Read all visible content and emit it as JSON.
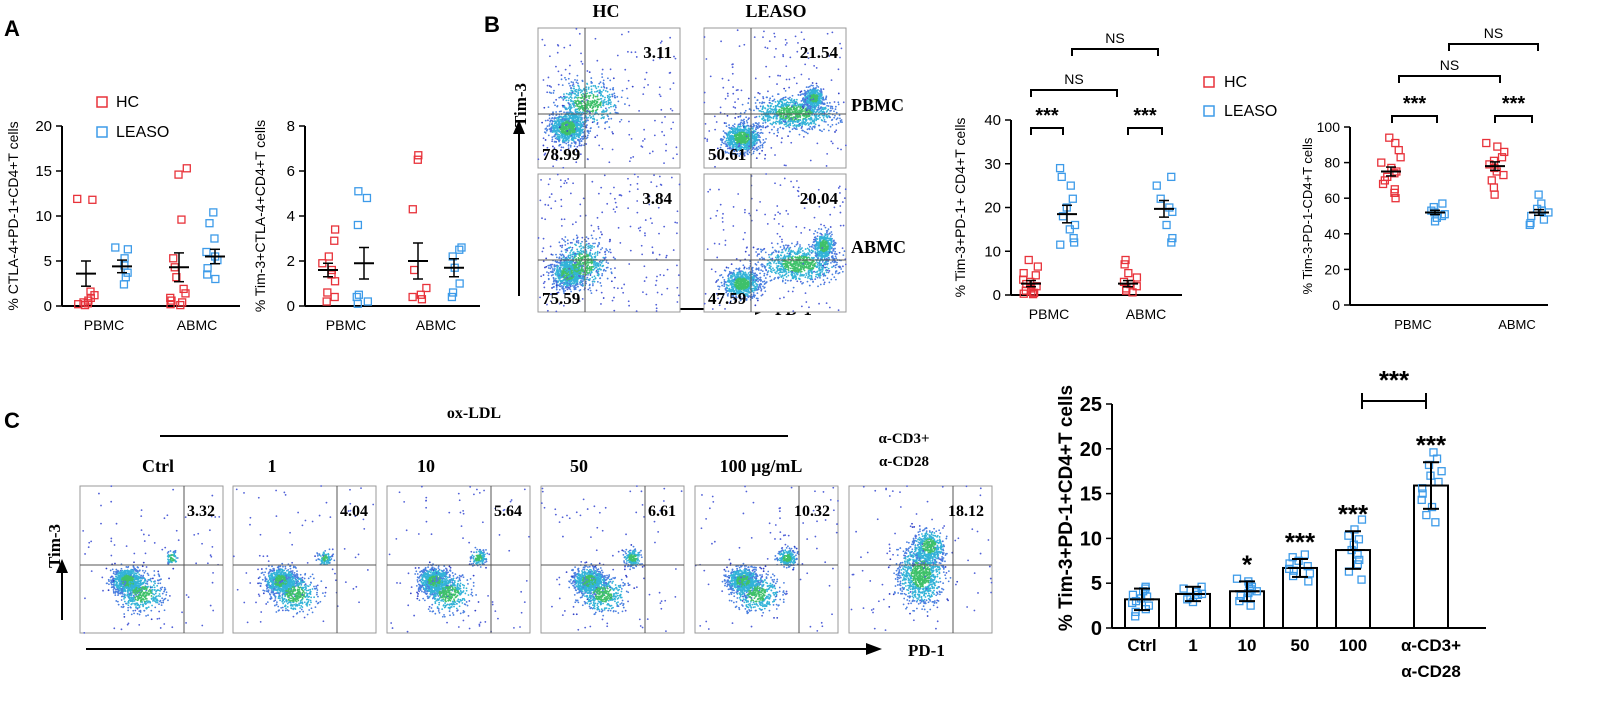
{
  "panel_labels": {
    "a": "A",
    "b": "B",
    "c": "C"
  },
  "colors": {
    "hc": "#e8323a",
    "leaso": "#3d9be9",
    "axis": "#000000"
  },
  "legend": {
    "hc": "HC",
    "leaso": "LEASO"
  },
  "flow_common": {
    "tim3": "Tim-3",
    "pd1": "PD-1"
  },
  "flow_b": {
    "col_hc": "HC",
    "col_leaso": "LEASO",
    "row_pbmc": "PBMC",
    "row_abmc": "ABMC",
    "q": {
      "hc_pbmc_ur": "3.11",
      "hc_pbmc_ll": "78.99",
      "leaso_pbmc_ur": "21.54",
      "leaso_pbmc_ll": "50.61",
      "hc_abmc_ur": "3.84",
      "hc_abmc_ll": "75.59",
      "leaso_abmc_ur": "20.04",
      "leaso_abmc_ll": "47.59"
    }
  },
  "flow_c": {
    "ox_label": "ox-LDL",
    "cond": {
      "ctrl": "Ctrl",
      "d1": "1",
      "d10": "10",
      "d50": "50",
      "d100": "100 μg/mL",
      "cd3a": "α-CD3+",
      "cd3b": "α-CD28"
    },
    "values": {
      "ctrl": "3.32",
      "d1": "4.04",
      "d10": "5.64",
      "d50": "6.61",
      "d100": "10.32",
      "cd3": "18.12"
    }
  },
  "chart_data": [
    {
      "id": "A1",
      "type": "scatter",
      "ylabel": "% CTLA-4+PD-1+CD4+T cells",
      "ylim": [
        0,
        20
      ],
      "yticks": [
        "0",
        "5",
        "10",
        "15",
        "20"
      ],
      "categories": [
        "PBMC",
        "ABMC"
      ],
      "series": [
        {
          "name": "HC",
          "groups": [
            [
              11.8,
              11.9,
              1.6,
              1.2,
              0.9,
              0.6,
              0.4,
              0.3,
              0.2,
              0.1
            ],
            [
              15.3,
              14.6,
              9.6,
              5.3,
              4.3,
              3.2,
              1.9,
              1.4,
              0.9,
              0.6,
              0.4,
              0.2,
              0.1
            ]
          ],
          "mean": [
            3.6,
            4.3
          ],
          "sem": [
            1.4,
            1.6
          ]
        },
        {
          "name": "LEASO",
          "groups": [
            [
              6.5,
              6.3,
              5.3,
              4.5,
              3.7,
              3.2,
              2.4
            ],
            [
              10.4,
              9.2,
              7.5,
              6.0,
              5.5,
              5.1,
              4.2,
              3.5,
              3.0
            ]
          ],
          "mean": [
            4.4,
            5.5
          ],
          "sem": [
            0.7,
            0.8
          ]
        }
      ]
    },
    {
      "id": "A2",
      "type": "scatter",
      "ylabel": "% Tim-3+CTLA-4+CD4+T cells",
      "ylim": [
        0,
        8
      ],
      "yticks": [
        "0",
        "2",
        "4",
        "6",
        "8"
      ],
      "categories": [
        "PBMC",
        "ABMC"
      ],
      "series": [
        {
          "name": "HC",
          "groups": [
            [
              3.4,
              2.9,
              2.2,
              1.9,
              1.6,
              1.4,
              1.1,
              0.6,
              0.4,
              0.2
            ],
            [
              6.7,
              6.5,
              4.3,
              1.6,
              0.8,
              0.5,
              0.4,
              0.3
            ]
          ],
          "mean": [
            1.6,
            2.0
          ],
          "sem": [
            0.3,
            0.8
          ]
        },
        {
          "name": "LEASO",
          "groups": [
            [
              5.1,
              4.8,
              3.6,
              0.5,
              0.4,
              0.2,
              0.1
            ],
            [
              2.6,
              2.5,
              2.2,
              1.7,
              1.0,
              0.6,
              0.4
            ]
          ],
          "mean": [
            1.9,
            1.7
          ],
          "sem": [
            0.7,
            0.4
          ]
        }
      ]
    },
    {
      "id": "B1",
      "type": "scatter",
      "ylabel": "% Tim-3+PD-1+ CD4+T cells",
      "ylim": [
        0,
        40
      ],
      "yticks": [
        "0",
        "10",
        "20",
        "30",
        "40"
      ],
      "categories": [
        "PBMC",
        "ABMC"
      ],
      "series": [
        {
          "name": "HC",
          "groups": [
            [
              8,
              6.5,
              5,
              4.5,
              3.5,
              3,
              2.5,
              2,
              1.5,
              1,
              0.8,
              0.5,
              0.3,
              0.2
            ],
            [
              8,
              7,
              5,
              4,
              3,
              2.5,
              2,
              1.5,
              1,
              0.6
            ]
          ],
          "mean": [
            2.6,
            2.6
          ],
          "sem": [
            0.7,
            0.7
          ]
        },
        {
          "name": "LEASO",
          "groups": [
            [
              29,
              27,
              25,
              22,
              20,
              18,
              16,
              15,
              13,
              12,
              11.5
            ],
            [
              27,
              25,
              22,
              20,
              19,
              16,
              13,
              12
            ]
          ],
          "mean": [
            18.5,
            19.7
          ],
          "sem": [
            2.0,
            1.9
          ]
        }
      ],
      "significance": [
        {
          "label": "***",
          "between": "HC-LEASO PBMC"
        },
        {
          "label": "***",
          "between": "HC-LEASO ABMC"
        },
        {
          "label": "NS",
          "between": "HC PBMC-ABMC"
        },
        {
          "label": "NS",
          "between": "LEASO PBMC-ABMC"
        }
      ]
    },
    {
      "id": "B2",
      "type": "scatter",
      "ylabel": "% Tim-3-PD-1-CD4+T cells",
      "ylim": [
        0,
        100
      ],
      "yticks": [
        "0",
        "20",
        "40",
        "60",
        "80",
        "100"
      ],
      "categories": [
        "PBMC",
        "ABMC"
      ],
      "series": [
        {
          "name": "HC",
          "groups": [
            [
              94,
              91,
              87,
              83,
              80,
              77,
              75,
              74,
              72,
              70,
              68,
              65,
              63,
              60
            ],
            [
              91,
              89,
              86,
              83,
              81,
              79,
              77,
              75,
              73,
              70,
              66,
              62
            ]
          ],
          "mean": [
            75,
            78
          ],
          "sem": [
            2.5,
            2.4
          ]
        },
        {
          "name": "LEASO",
          "groups": [
            [
              57,
              55,
              53,
              52,
              51,
              50,
              49,
              47
            ],
            [
              62,
              57,
              54,
              53,
              52,
              50,
              48,
              46,
              45
            ]
          ],
          "mean": [
            52,
            52
          ],
          "sem": [
            1.2,
            1.6
          ]
        }
      ],
      "significance": [
        {
          "label": "***",
          "between": "HC-LEASO PBMC"
        },
        {
          "label": "***",
          "between": "HC-LEASO ABMC"
        },
        {
          "label": "NS",
          "between": "HC PBMC-ABMC"
        },
        {
          "label": "NS",
          "between": "LEASO PBMC-ABMC"
        }
      ]
    },
    {
      "id": "C",
      "type": "bar",
      "ylabel": "% Tim-3+PD-1+CD4+T cells",
      "ylim": [
        0,
        25
      ],
      "yticks": [
        "0",
        "5",
        "10",
        "15",
        "20",
        "25"
      ],
      "categories": [
        "Ctrl",
        "1",
        "10",
        "50",
        "100",
        "α-CD3+ α-CD28"
      ],
      "values": [
        3.2,
        3.8,
        4.1,
        6.7,
        8.7,
        15.9
      ],
      "sd": [
        1.2,
        0.8,
        1.1,
        1.0,
        2.1,
        2.6
      ],
      "points": [
        [
          1.3,
          1.8,
          2.1,
          2.5,
          2.8,
          3.0,
          3.3,
          3.5,
          3.7,
          4.1,
          4.4,
          4.6
        ],
        [
          2.9,
          3.2,
          3.5,
          3.7,
          3.8,
          4.0,
          4.2,
          4.4,
          4.6
        ],
        [
          2.5,
          3.0,
          3.3,
          3.6,
          3.9,
          4.1,
          4.3,
          4.6,
          4.9,
          5.2,
          5.5
        ],
        [
          5.2,
          5.8,
          6.1,
          6.4,
          6.6,
          6.9,
          7.2,
          7.5,
          7.9,
          8.2
        ],
        [
          5.4,
          6.3,
          7.1,
          7.6,
          8.2,
          8.7,
          9.3,
          9.9,
          10.3,
          11.0,
          12.1
        ],
        [
          11.8,
          12.6,
          13.5,
          14.3,
          15.0,
          15.6,
          16.3,
          17.0,
          17.5,
          18.2,
          18.9,
          19.6
        ]
      ],
      "stars": [
        "",
        "",
        "*",
        "***",
        "***",
        "***"
      ],
      "bracket": {
        "label": "***",
        "between": "100 vs α-CD3+α-CD28"
      }
    }
  ]
}
